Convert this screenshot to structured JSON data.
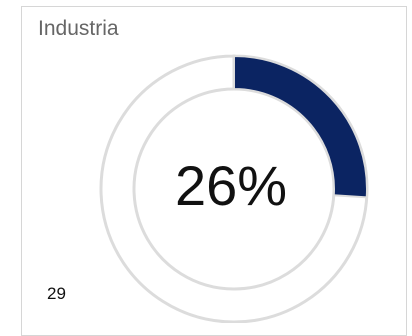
{
  "card": {
    "title": "Industria",
    "count": "29"
  },
  "chart_data": {
    "type": "pie",
    "subtype": "donut",
    "value_percent": 26,
    "center_label": "26%",
    "colors": {
      "filled": "#0b2462",
      "remaining": "#ffffff",
      "outline": "#dcdcdc"
    }
  }
}
